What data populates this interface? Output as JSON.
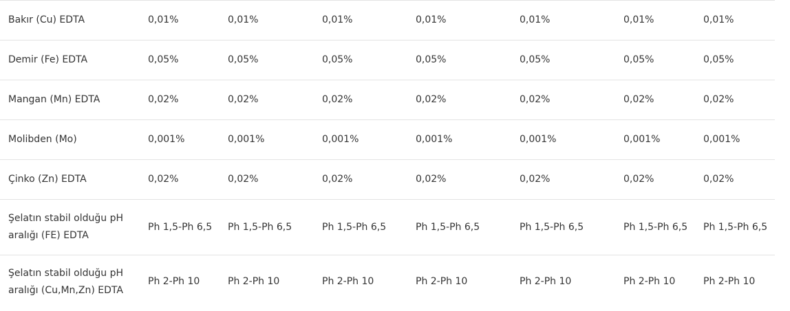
{
  "rows": [
    {
      "label": "Bakır (Cu) EDTA",
      "values": [
        "0,01%",
        "0,01%",
        "0,01%",
        "0,01%",
        "0,01%",
        "0,01%",
        "0,01%"
      ]
    },
    {
      "label": "Demir (Fe) EDTA",
      "values": [
        "0,05%",
        "0,05%",
        "0,05%",
        "0,05%",
        "0,05%",
        "0,05%",
        "0,05%"
      ]
    },
    {
      "label": "Mangan (Mn) EDTA",
      "values": [
        "0,02%",
        "0,02%",
        "0,02%",
        "0,02%",
        "0,02%",
        "0,02%",
        "0,02%"
      ]
    },
    {
      "label": "Molibden (Mo)",
      "values": [
        "0,001%",
        "0,001%",
        "0,001%",
        "0,001%",
        "0,001%",
        "0,001%",
        "0,001%"
      ]
    },
    {
      "label": "Çinko (Zn) EDTA",
      "values": [
        "0,02%",
        "0,02%",
        "0,02%",
        "0,02%",
        "0,02%",
        "0,02%",
        "0,02%"
      ]
    },
    {
      "label": "Şelatın stabil olduğu pH aralığı (FE) EDTA",
      "values": [
        "Ph 1,5-Ph 6,5",
        "Ph 1,5-Ph 6,5",
        "Ph 1,5-Ph 6,5",
        "Ph 1,5-Ph 6,5",
        "Ph 1,5-Ph 6,5",
        "Ph 1,5-Ph 6,5",
        "Ph 1,5-Ph 6,5"
      ]
    },
    {
      "label": "Şelatın stabil olduğu pH aralığı (Cu,Mn,Zn) EDTA",
      "values": [
        "Ph 2-Ph 10",
        "Ph 2-Ph 10",
        "Ph 2-Ph 10",
        "Ph 2-Ph 10",
        "Ph 2-Ph 10",
        "Ph 2-Ph 10",
        "Ph 2-Ph 10"
      ]
    }
  ]
}
